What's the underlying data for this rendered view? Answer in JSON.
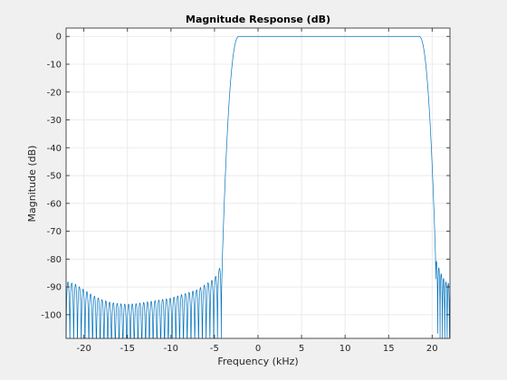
{
  "chart_data": {
    "type": "line",
    "title": "Magnitude Response (dB)",
    "xlabel": "Frequency (kHz)",
    "ylabel": "Magnitude (dB)",
    "xlim": [
      -22.05,
      22.05
    ],
    "ylim": [
      -108.5,
      3
    ],
    "grid": true,
    "x_ticks": [
      -20,
      -15,
      -10,
      -5,
      0,
      5,
      10,
      15,
      20
    ],
    "x_tick_labels": [
      "-20",
      "-15",
      "-10",
      "-5",
      "0",
      "5",
      "10",
      "15",
      "20"
    ],
    "y_ticks": [
      0,
      -10,
      -20,
      -30,
      -40,
      -50,
      -60,
      -70,
      -80,
      -90,
      -100
    ],
    "y_tick_labels": [
      "0",
      "-10",
      "-20",
      "-30",
      "-40",
      "-50",
      "-60",
      "-70",
      "-80",
      "-90",
      "-100"
    ],
    "colors": {
      "series": "#0072bd",
      "axes": "#262626",
      "grid": "#e6e6e6",
      "plot_bg": "#ffffff",
      "figure_bg": "#f0f0f0"
    },
    "series": [
      {
        "description": "bandpass magnitude response",
        "passband": [
          -2.2,
          18.5
        ],
        "passband_level": 0,
        "stopband_edges": [
          -4.1,
          20.4
        ],
        "stopband_envelope": {
          "x": [
            -22.05,
            -21,
            -20,
            -19,
            -18,
            -17,
            -16,
            -15,
            -14,
            -13,
            -12,
            -11,
            -10,
            -9,
            -8,
            -7,
            -6,
            -5,
            -4.5,
            -4.1
          ],
          "peak": [
            -88,
            -89,
            -91,
            -93,
            -94.5,
            -95.5,
            -96,
            -96.2,
            -96,
            -95.5,
            -95,
            -94.5,
            -94,
            -93,
            -92,
            -91,
            -89,
            -87,
            -84,
            -80
          ]
        },
        "upper_stopband_envelope": {
          "x": [
            20.4,
            21,
            21.5,
            22.05
          ],
          "peak": [
            -80,
            -85,
            -88,
            -89
          ]
        },
        "nulls_per_khz": 2.3
      }
    ]
  }
}
